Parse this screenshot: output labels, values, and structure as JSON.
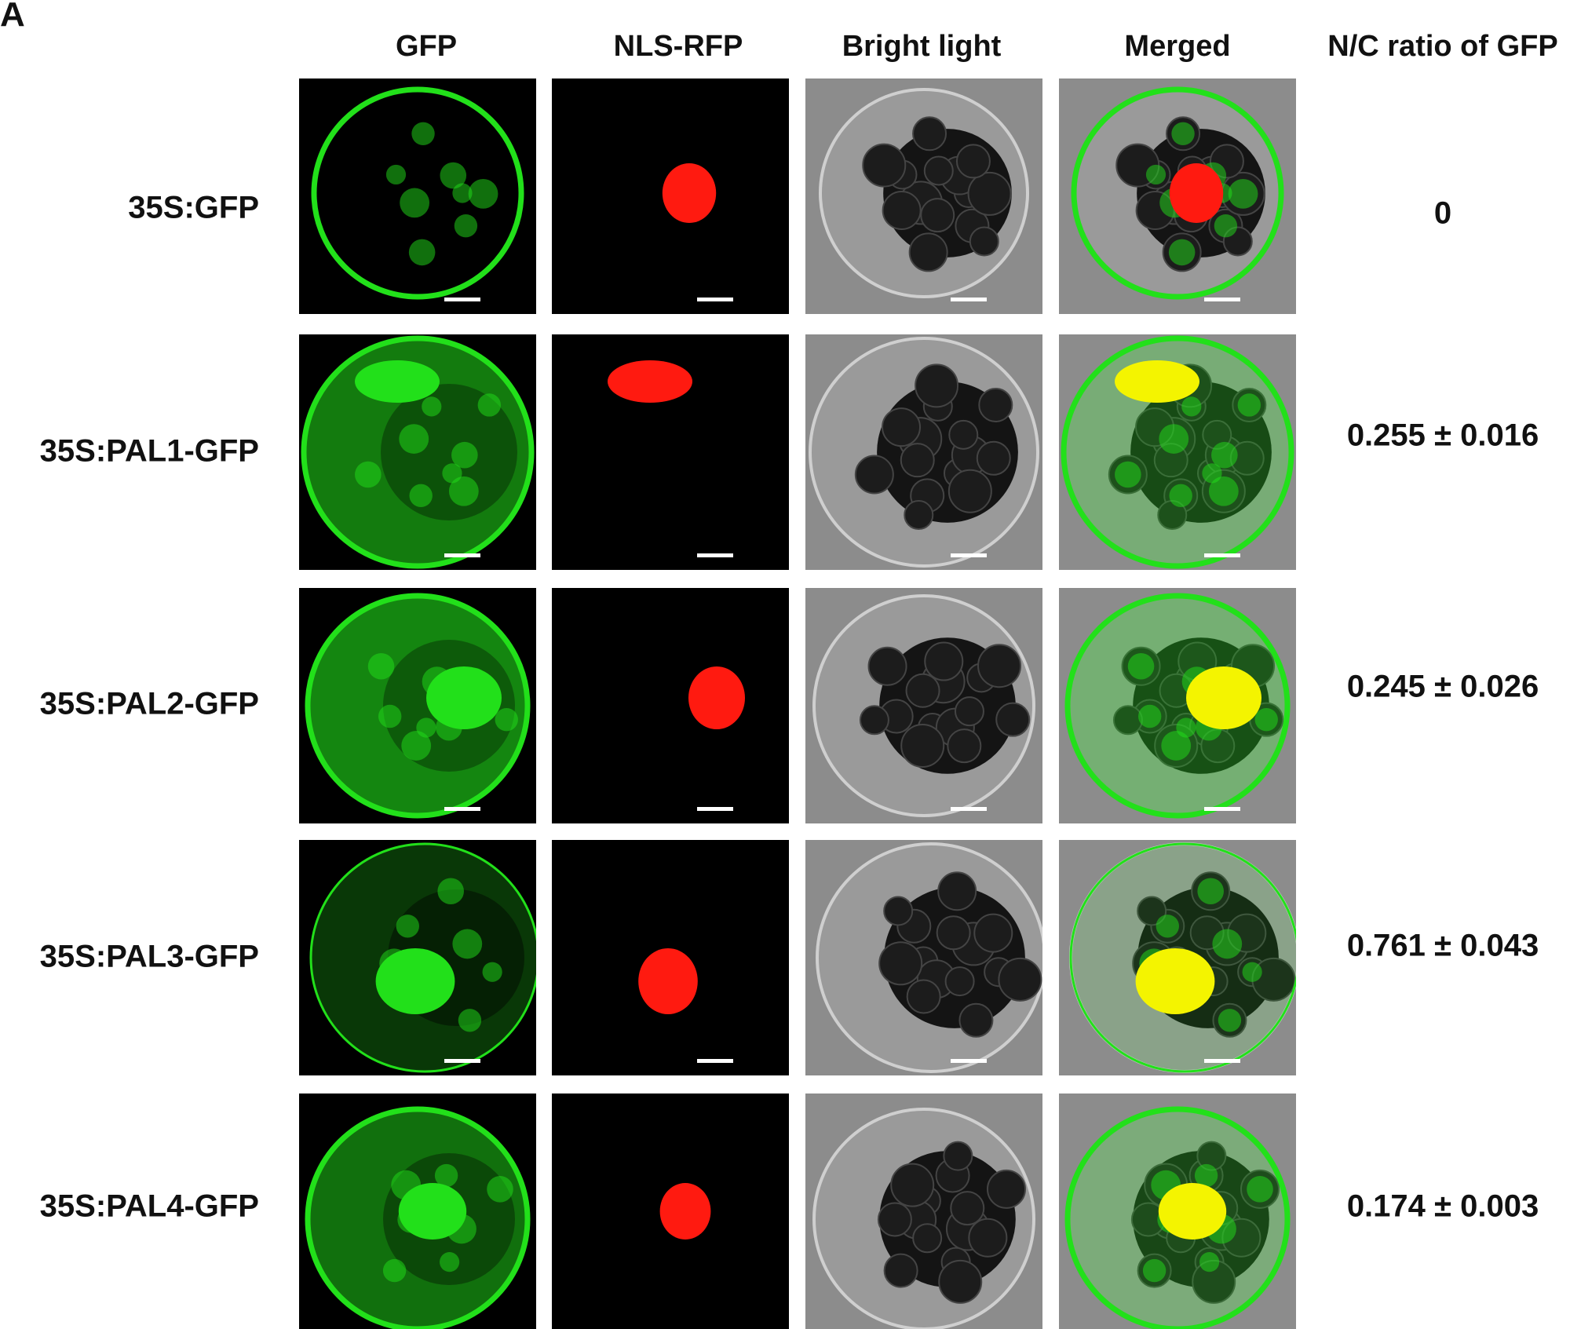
{
  "panel_letter": "A",
  "columns": [
    "GFP",
    "NLS-RFP",
    "Bright light",
    "Merged",
    "N/C ratio of GFP"
  ],
  "rows": [
    {
      "label": "35S:GFP",
      "nc_ratio": "0"
    },
    {
      "label": "35S:PAL1-GFP",
      "nc_ratio": "0.255 ± 0.016"
    },
    {
      "label": "35S:PAL2-GFP",
      "nc_ratio": "0.245 ± 0.026"
    },
    {
      "label": "35S:PAL3-GFP",
      "nc_ratio": "0.761 ± 0.043"
    },
    {
      "label": "35S:PAL4-GFP",
      "nc_ratio": "0.174 ± 0.003"
    }
  ],
  "colors": {
    "gfp": "#22e01a",
    "rfp": "#ff1a10",
    "merged_overlap": "#f4f400",
    "background": "#000000",
    "brightfield": "#8c8c8c"
  }
}
